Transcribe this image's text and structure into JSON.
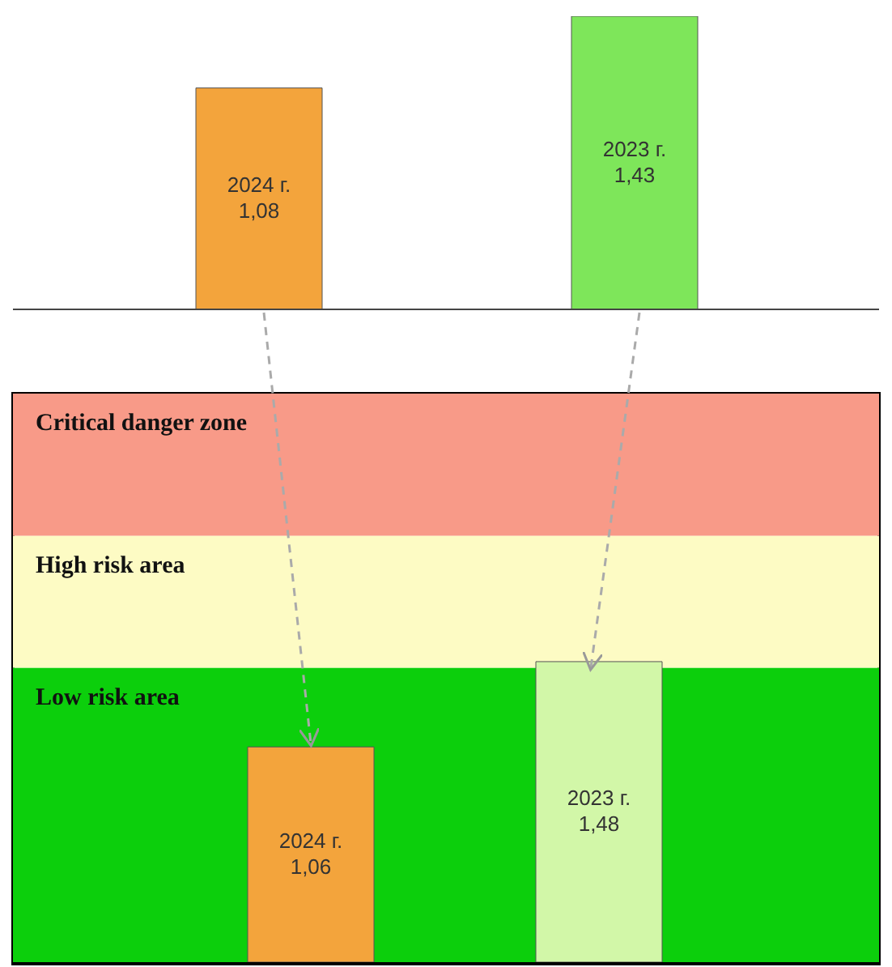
{
  "chart_data": [
    {
      "type": "bar",
      "categories": [
        "2024 г.",
        "2023 г."
      ],
      "values": [
        1.08,
        1.43
      ],
      "colors": [
        "#f3a43c",
        "#7ee65a"
      ],
      "value_labels": [
        "1,08",
        "1,43"
      ]
    },
    {
      "type": "bar",
      "categories": [
        "2024 г.",
        "2023 г."
      ],
      "values": [
        1.06,
        1.48
      ],
      "colors": [
        "#f3a43c",
        "#d2f7a8"
      ],
      "value_labels": [
        "1,06",
        "1,48"
      ],
      "bands": [
        {
          "axis": "y",
          "from": 0,
          "to": 1.45,
          "label": "Low risk area",
          "color": "#0ccf0c"
        },
        {
          "axis": "y",
          "from": 1.45,
          "to": 2.1,
          "label": "High risk area",
          "color": "#fdfbc4"
        },
        {
          "axis": "y",
          "from": 2.1,
          "to": 2.8,
          "label": "Critical danger zone",
          "color": "#f89a88"
        }
      ]
    }
  ]
}
